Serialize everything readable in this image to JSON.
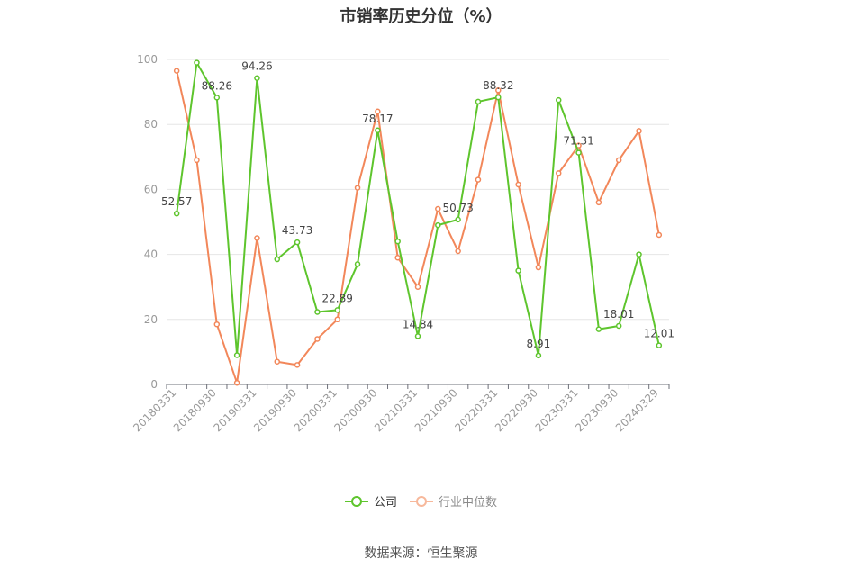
{
  "title": "市销率历史分位（%）",
  "source_note": "数据来源：恒生聚源",
  "legend": {
    "company_label": "公司",
    "industry_label": "行业中位数"
  },
  "colors": {
    "company": "#5ec52d",
    "industry": "#f2875a",
    "grid": "#e6e6e6",
    "axis": "#6e7079",
    "label": "#999999",
    "data_label": "#444444"
  },
  "chart_data": {
    "type": "line",
    "title": "市销率历史分位（%）",
    "ylim": [
      0,
      100
    ],
    "yticks": [
      0,
      20,
      40,
      60,
      80,
      100
    ],
    "grid": "horizontal",
    "legend_position": "bottom",
    "categories": [
      "20180331",
      "20180630",
      "20180930",
      "20181231",
      "20190331",
      "20190630",
      "20190930",
      "20191231",
      "20200331",
      "20200630",
      "20200930",
      "20201231",
      "20210331",
      "20210630",
      "20210930",
      "20211231",
      "20220331",
      "20220630",
      "20220930",
      "20221231",
      "20230331",
      "20230630",
      "20230930",
      "20231231",
      "20240329"
    ],
    "x_tick_labels": [
      "20180331",
      "20180930",
      "20190331",
      "20190930",
      "20200331",
      "20200930",
      "20210331",
      "20210930",
      "20220331",
      "20220930",
      "20230331",
      "20230930",
      "20240329"
    ],
    "series": [
      {
        "name": "公司",
        "values": [
          52.57,
          99,
          88.26,
          9,
          94.26,
          38.5,
          43.73,
          22.3,
          22.89,
          37,
          78.17,
          44,
          14.84,
          49,
          50.73,
          87,
          88.32,
          35,
          8.91,
          87.5,
          71.31,
          17,
          18.01,
          40,
          12.01
        ],
        "data_labels": {
          "0": "52.57",
          "2": "88.26",
          "4": "94.26",
          "6": "43.73",
          "8": "22.89",
          "10": "78.17",
          "12": "14.84",
          "14": "50.73",
          "16": "88.32",
          "18": "8.91",
          "20": "71.31",
          "22": "18.01",
          "24": "12.01"
        }
      },
      {
        "name": "行业中位数",
        "values": [
          96.5,
          69,
          18.5,
          0.5,
          45,
          7,
          6,
          14,
          20,
          60.5,
          84,
          39,
          30,
          54,
          41,
          63,
          90.5,
          61.5,
          36,
          65,
          73.5,
          56,
          69,
          78,
          46
        ]
      }
    ]
  }
}
